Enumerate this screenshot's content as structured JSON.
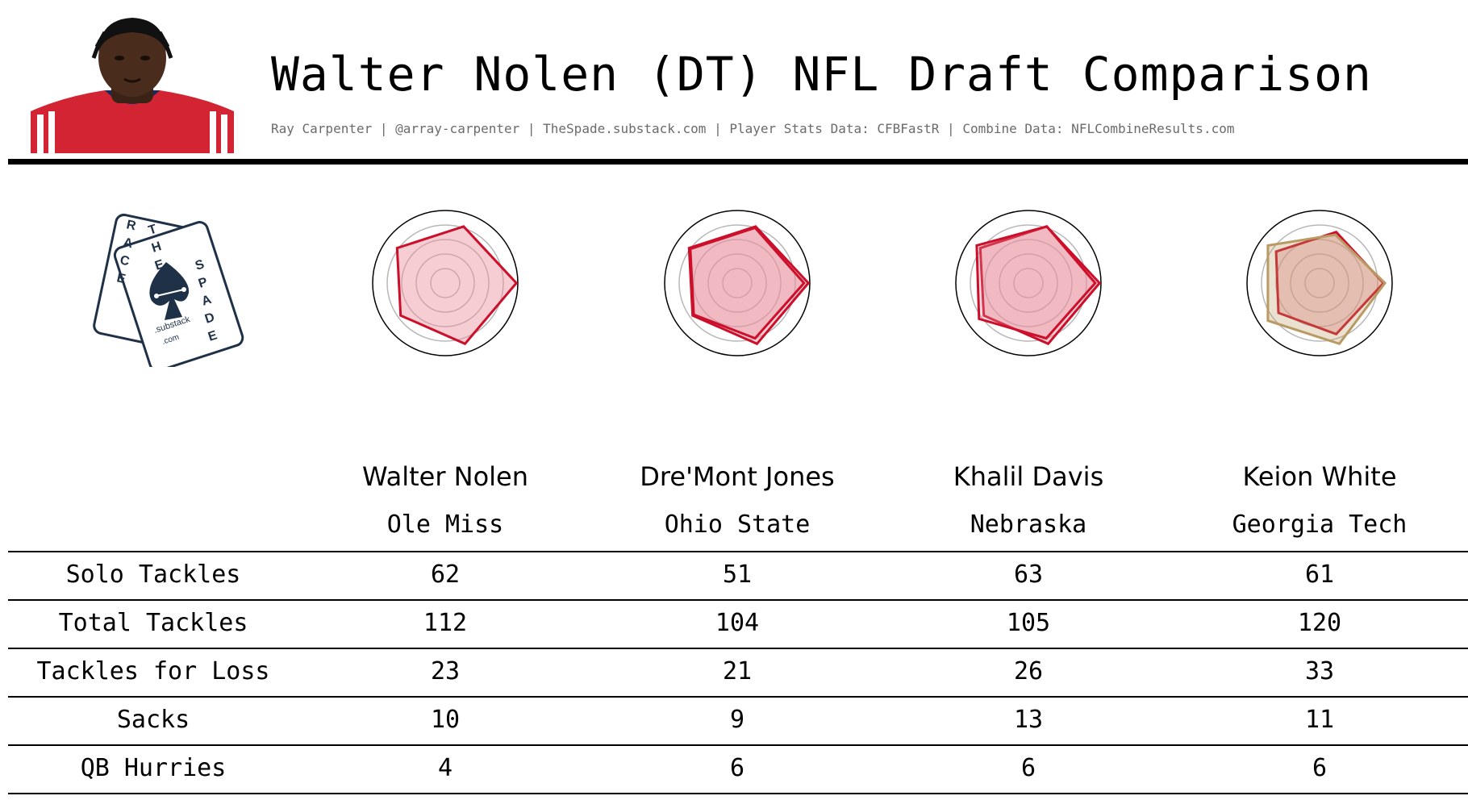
{
  "header": {
    "title": "Walter Nolen (DT) NFL Draft Comparison",
    "subtitle": "Ray Carpenter | @array-carpenter | TheSpade.substack.com | Player Stats Data: CFBFastR | Combine Data: NFLCombineResults.com"
  },
  "logo": {
    "letters_left": "RACE",
    "letters_top": "THE",
    "letters_right": "SPADE",
    "sub1": ".substack",
    "sub2": ".com"
  },
  "colors": {
    "primary_red": "#cc0f2a",
    "fill_red": "#e8909e",
    "gold": "#b89a62",
    "rule": "#000000"
  },
  "players": [
    {
      "name": "Walter Nolen",
      "school": "Ole Miss"
    },
    {
      "name": "Dre'Mont Jones",
      "school": "Ohio State"
    },
    {
      "name": "Khalil Davis",
      "school": "Nebraska"
    },
    {
      "name": "Keion White",
      "school": "Georgia Tech"
    }
  ],
  "chart_data": {
    "type": "table",
    "columns": [
      "Walter Nolen",
      "Dre'Mont Jones",
      "Khalil Davis",
      "Keion White"
    ],
    "rows": [
      {
        "label": "Solo Tackles",
        "values": [
          62,
          51,
          63,
          61
        ]
      },
      {
        "label": "Total Tackles",
        "values": [
          112,
          104,
          105,
          120
        ]
      },
      {
        "label": "Tackles for Loss",
        "values": [
          23,
          21,
          26,
          33
        ]
      },
      {
        "label": "Sacks",
        "values": [
          10,
          9,
          13,
          11
        ]
      },
      {
        "label": "QB Hurries",
        "values": [
          4,
          6,
          6,
          6
        ]
      }
    ],
    "radar": {
      "type": "radar",
      "axes": 5,
      "range": [
        0,
        1
      ],
      "charts": [
        {
          "base": [
            0.98,
            0.82,
            0.82,
            0.76,
            0.88
          ],
          "comp": null,
          "comp_color": "primary_red"
        },
        {
          "base": [
            0.98,
            0.82,
            0.82,
            0.76,
            0.88
          ],
          "comp": [
            0.92,
            0.8,
            0.8,
            0.74,
            0.8
          ],
          "comp_color": "primary_red"
        },
        {
          "base": [
            0.98,
            0.82,
            0.82,
            0.76,
            0.88
          ],
          "comp": [
            0.92,
            0.82,
            0.88,
            0.84,
            0.8
          ],
          "comp_color": "primary_red"
        },
        {
          "base": [
            0.88,
            0.74,
            0.74,
            0.7,
            0.74
          ],
          "comp": [
            0.9,
            0.7,
            0.88,
            0.88,
            0.88
          ],
          "comp_color": "gold"
        }
      ]
    }
  }
}
